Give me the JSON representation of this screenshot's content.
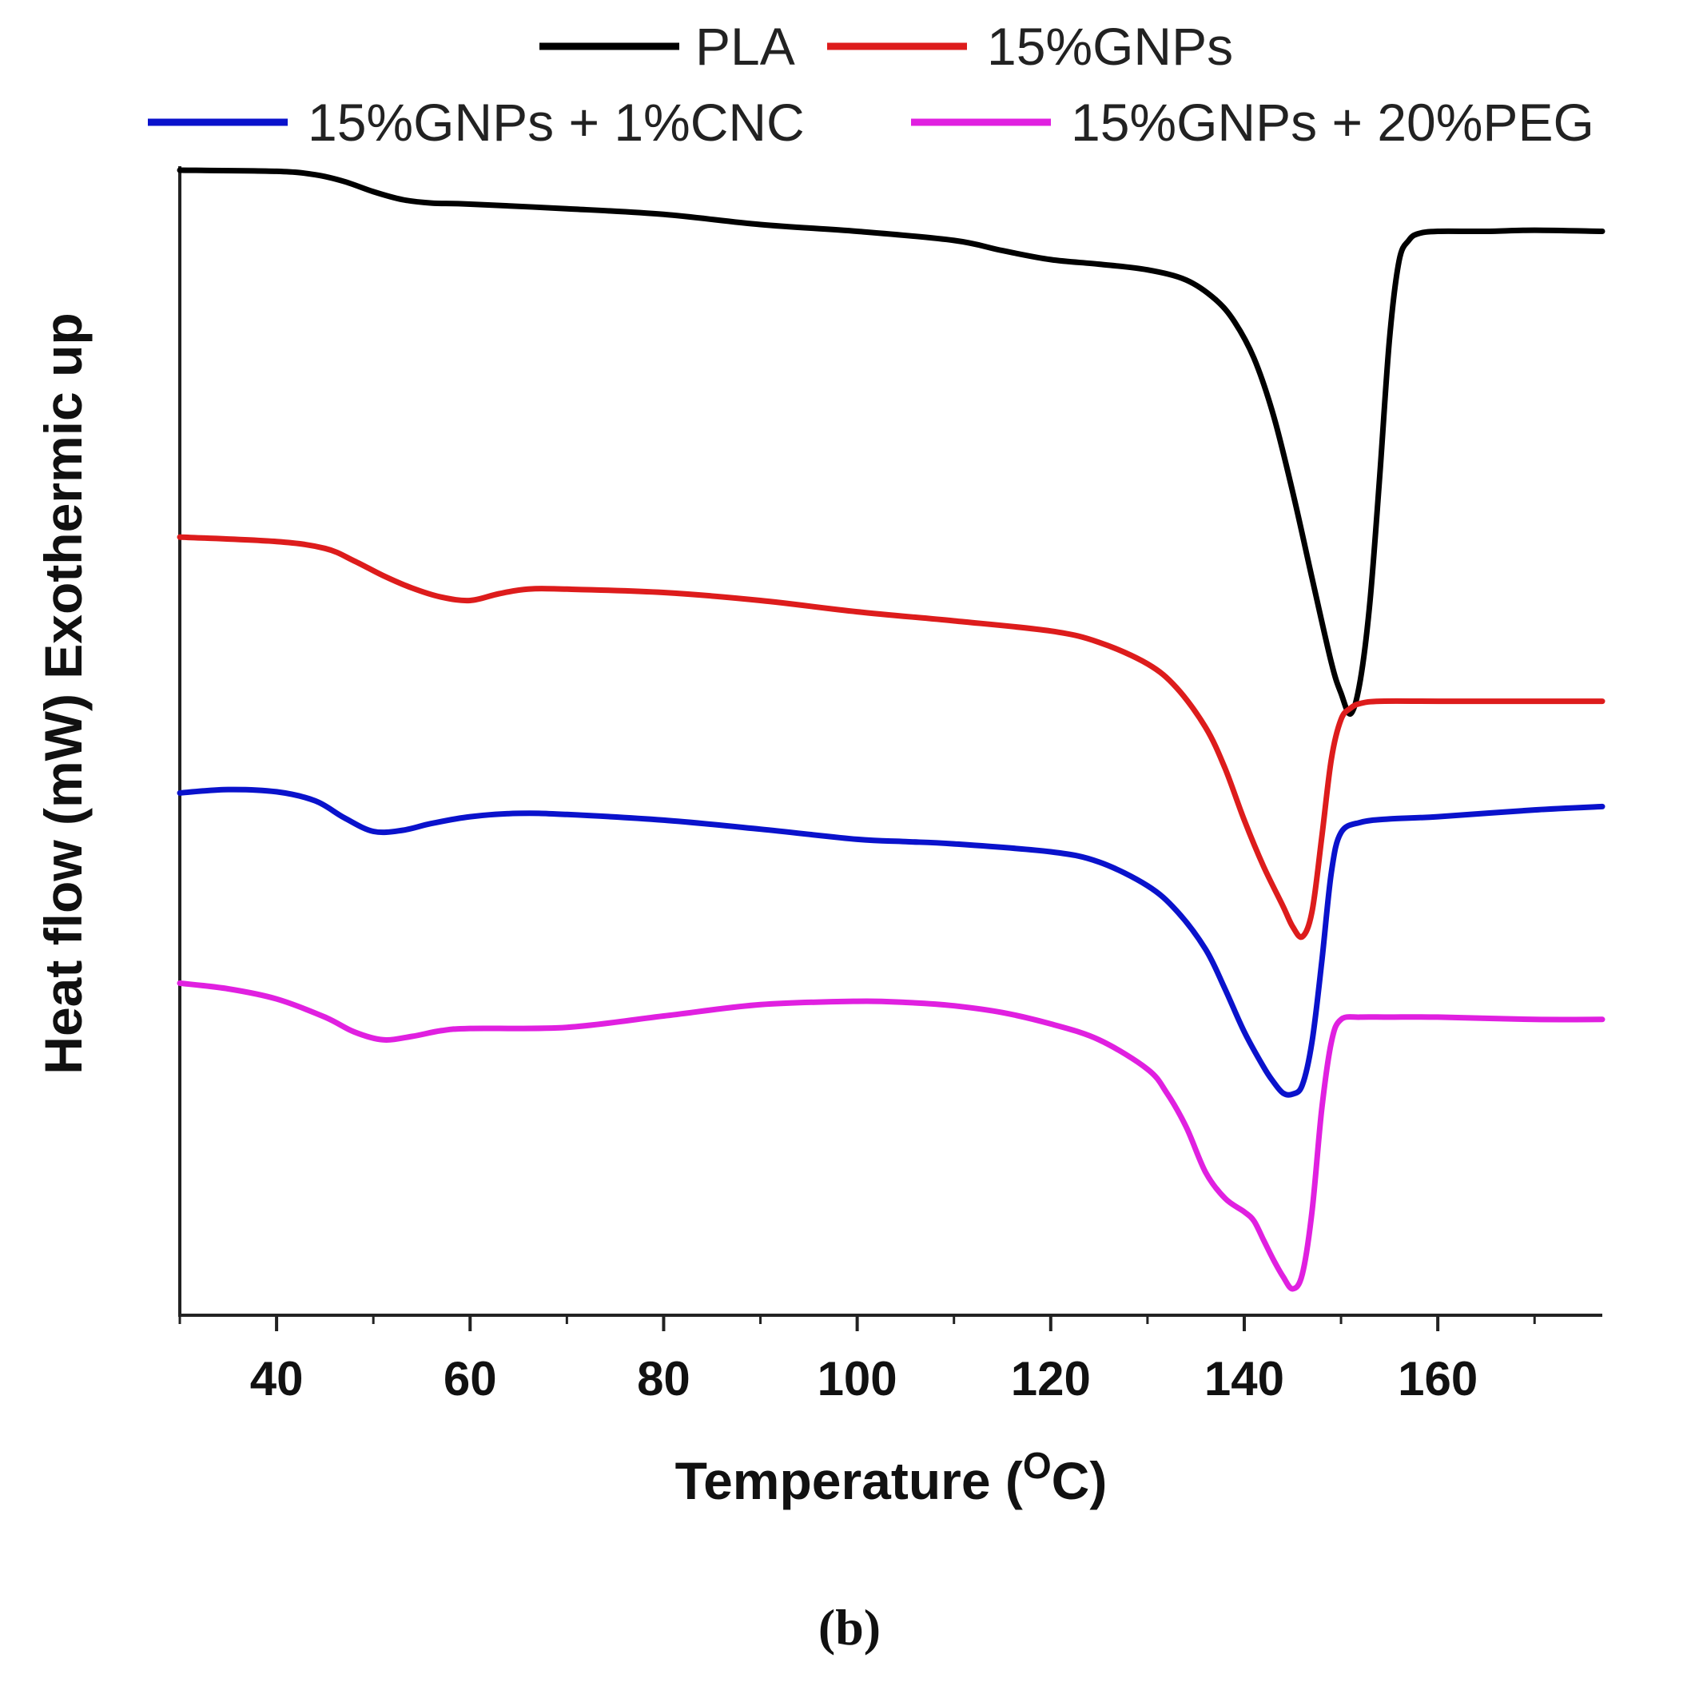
{
  "chart_data": {
    "type": "line",
    "panel_label": "(b)",
    "xlabel": "Temperature",
    "xlabel_unit_prefix": "(",
    "xlabel_unit_degree": "O",
    "xlabel_unit_suffix": "C)",
    "ylabel": "Heat flow (mW) Exothermic up",
    "xlim": [
      30,
      177
    ],
    "ylim": [
      0,
      100
    ],
    "x_ticks": [
      40,
      60,
      80,
      100,
      120,
      140,
      160
    ],
    "x_ticks_minor": [
      30,
      50,
      70,
      90,
      110,
      130,
      150,
      170
    ],
    "y_ticks": [],
    "grid": false,
    "legend_position": "top",
    "series": [
      {
        "name": "PLA",
        "color": "#000000",
        "x": [
          30,
          40,
          44,
          47,
          50,
          53,
          56,
          60,
          70,
          80,
          90,
          100,
          110,
          115,
          120,
          125,
          130,
          134,
          137,
          139,
          141,
          143,
          145,
          147,
          149,
          150,
          151,
          152,
          153,
          154,
          155,
          156,
          157,
          158,
          160,
          165,
          170,
          177
        ],
        "y": [
          100,
          99.9,
          99.6,
          99.0,
          98.1,
          97.4,
          97.1,
          97.0,
          96.6,
          96.1,
          95.2,
          94.6,
          93.8,
          92.9,
          92.1,
          91.7,
          91.2,
          90.3,
          88.6,
          86.6,
          83.4,
          78.4,
          71.6,
          64.0,
          56.5,
          53.8,
          52.0,
          55.0,
          62.0,
          73.0,
          85.0,
          92.0,
          93.8,
          94.4,
          94.6,
          94.6,
          94.7,
          94.6
        ]
      },
      {
        "name": "15%GNPs",
        "color": "#dd1c1c",
        "x": [
          30,
          40,
          45,
          48,
          51,
          54,
          57,
          60,
          63,
          66,
          70,
          80,
          90,
          100,
          110,
          120,
          125,
          130,
          133,
          136,
          138,
          140,
          142,
          144,
          145,
          146,
          147,
          148,
          149,
          150,
          151,
          152,
          154,
          160,
          170,
          177
        ],
        "y": [
          67.6,
          67.2,
          66.6,
          65.5,
          64.2,
          63.1,
          62.3,
          62.0,
          62.6,
          63.0,
          63.0,
          62.7,
          62.0,
          61.0,
          60.2,
          59.3,
          58.3,
          56.4,
          54.3,
          50.8,
          47.2,
          42.6,
          38.5,
          35.0,
          33.2,
          32.3,
          34.5,
          41.0,
          48.0,
          51.5,
          52.5,
          52.9,
          53.1,
          53.1,
          53.1,
          53.1
        ]
      },
      {
        "name": "15%GNPs + 1%CNC",
        "color": "#0a12cc",
        "x": [
          30,
          35,
          40,
          44,
          47,
          50,
          53,
          56,
          60,
          65,
          70,
          80,
          90,
          100,
          105,
          110,
          120,
          125,
          130,
          133,
          136,
          138,
          140,
          142,
          143,
          144,
          145,
          146,
          147,
          148,
          149,
          150,
          152,
          155,
          160,
          170,
          177
        ],
        "y": [
          45.0,
          45.3,
          45.1,
          44.3,
          42.8,
          41.6,
          41.7,
          42.3,
          42.9,
          43.2,
          43.1,
          42.6,
          41.8,
          40.9,
          40.7,
          40.5,
          39.8,
          38.9,
          36.8,
          34.6,
          31.2,
          27.7,
          23.9,
          20.8,
          19.5,
          18.5,
          18.4,
          19.2,
          23.0,
          30.0,
          38.0,
          41.5,
          42.4,
          42.7,
          42.9,
          43.5,
          43.8
        ]
      },
      {
        "name": "15%GNPs + 20%PEG",
        "color": "#e020e0",
        "x": [
          30,
          35,
          40,
          45,
          48,
          51,
          54,
          57,
          60,
          70,
          80,
          90,
          100,
          105,
          110,
          115,
          120,
          125,
          130,
          132,
          134,
          136,
          138,
          140,
          141,
          142,
          143,
          144,
          145,
          146,
          147,
          148,
          149,
          150,
          152,
          155,
          160,
          170,
          177
        ],
        "y": [
          28.2,
          27.7,
          26.8,
          25.2,
          23.9,
          23.2,
          23.5,
          24.0,
          24.2,
          24.3,
          25.3,
          26.3,
          26.6,
          26.5,
          26.2,
          25.6,
          24.6,
          23.2,
          20.6,
          18.5,
          15.5,
          11.5,
          9.2,
          8.0,
          7.2,
          5.5,
          3.8,
          2.3,
          1.2,
          2.5,
          8.0,
          17.0,
          23.0,
          25.0,
          25.2,
          25.2,
          25.2,
          25.0,
          25.0
        ]
      }
    ]
  }
}
